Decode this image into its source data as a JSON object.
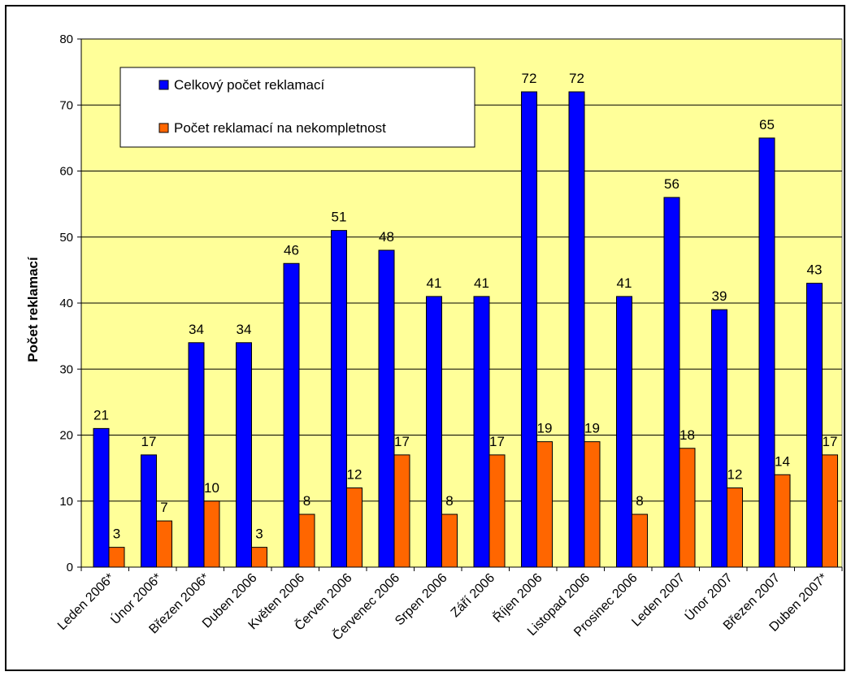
{
  "chart_data": {
    "type": "bar",
    "title": "",
    "xlabel": "",
    "ylabel": "Počet reklamací",
    "ylim": [
      0,
      80
    ],
    "yticks": [
      0,
      10,
      20,
      30,
      40,
      50,
      60,
      70,
      80
    ],
    "grid": true,
    "legend_position": "top-left",
    "categories": [
      "Leden 2006*",
      "Únor 2006*",
      "Březen 2006*",
      "Duben 2006",
      "Květen 2006",
      "Červen 2006",
      "Červenec 2006",
      "Srpen 2006",
      "Září 2006",
      "Říjen 2006",
      "Listopad 2006",
      "Prosinec 2006",
      "Leden 2007",
      "Únor 2007",
      "Březen 2007",
      "Duben 2007*"
    ],
    "series": [
      {
        "name": "Celkový počet reklamací",
        "color": "#0000ff",
        "values": [
          21,
          17,
          34,
          34,
          46,
          51,
          48,
          41,
          41,
          72,
          72,
          41,
          56,
          39,
          65,
          43
        ]
      },
      {
        "name": "Počet reklamací na nekompletnost",
        "color": "#ff6600",
        "values": [
          3,
          7,
          10,
          3,
          8,
          12,
          17,
          8,
          17,
          19,
          19,
          8,
          18,
          12,
          14,
          17
        ]
      }
    ],
    "plot_background": "#ffff99"
  }
}
